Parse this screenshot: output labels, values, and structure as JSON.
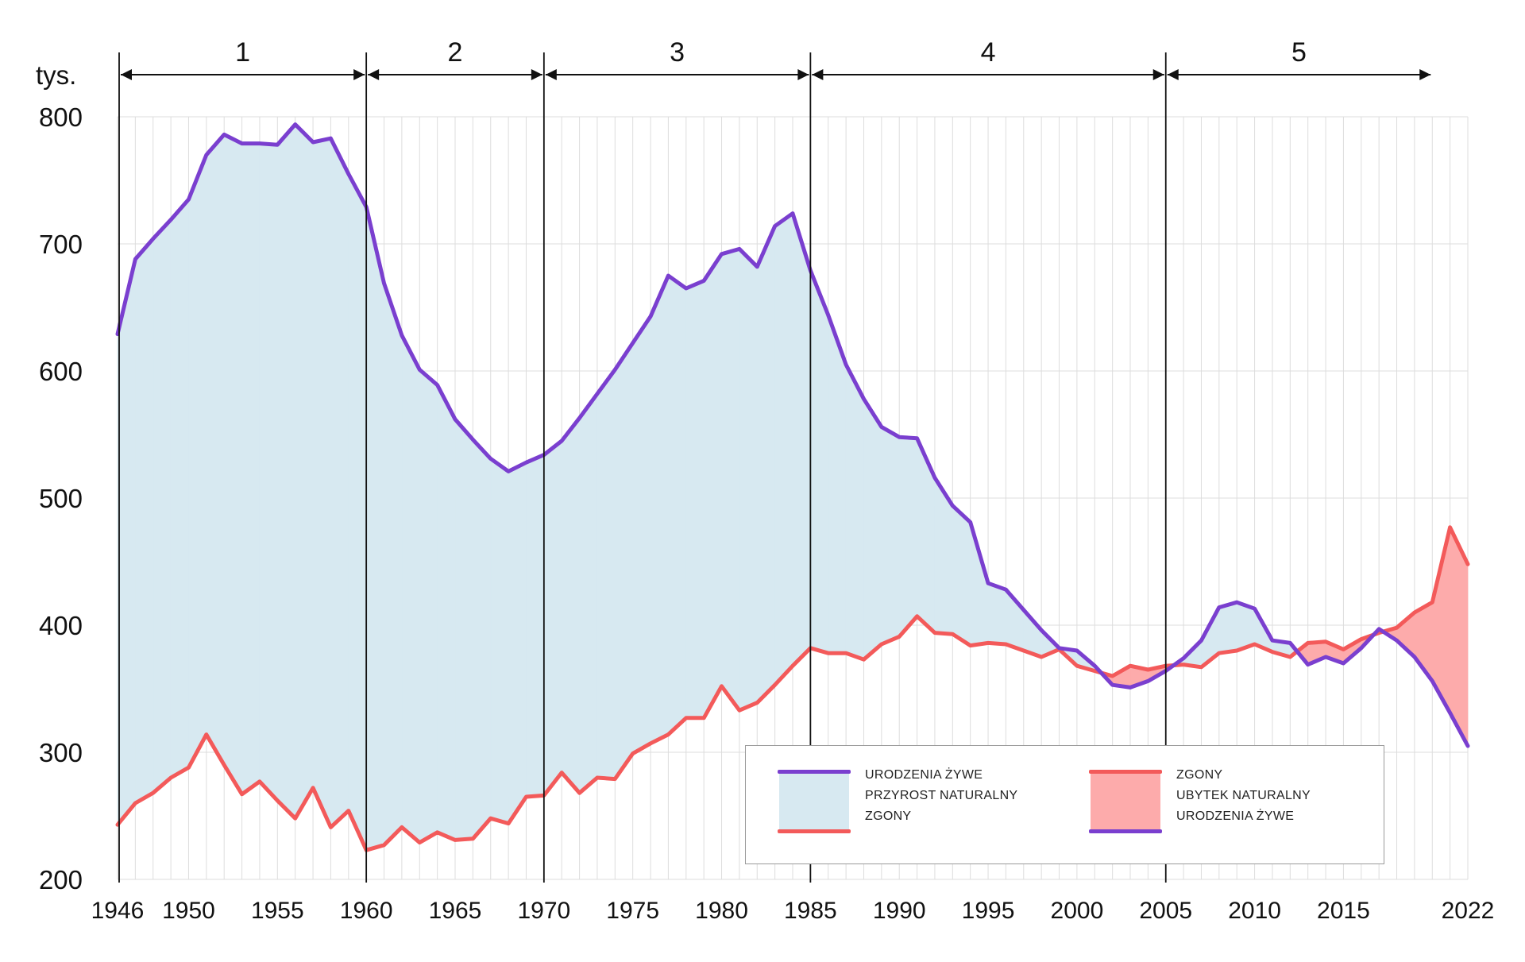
{
  "chart_data": {
    "type": "area",
    "ylabel": "tys.",
    "ylim": [
      200,
      800
    ],
    "yticks": [
      200,
      300,
      400,
      500,
      600,
      700,
      800
    ],
    "xlim": [
      1946,
      2022
    ],
    "xtick_labels": [
      "1946",
      "1950",
      "1955",
      "1960",
      "1965",
      "1970",
      "1975",
      "1980",
      "1985",
      "1990",
      "1995",
      "2000",
      "2005",
      "2010",
      "2015",
      "2022"
    ],
    "xtick_years": [
      1946,
      1950,
      1955,
      1960,
      1965,
      1970,
      1975,
      1980,
      1985,
      1990,
      1995,
      2000,
      2005,
      2010,
      2015,
      2022
    ],
    "grid": true,
    "colors": {
      "births": "#7a3fcf",
      "deaths": "#f35a5a",
      "growth_fill": "#d7e9f1",
      "decline_fill": "#fdabab",
      "grid": "#dddddd",
      "period_line": "#111111"
    },
    "periods": [
      {
        "label": "1",
        "start": 1946,
        "end": 1960
      },
      {
        "label": "2",
        "start": 1960,
        "end": 1970
      },
      {
        "label": "3",
        "start": 1970,
        "end": 1985
      },
      {
        "label": "4",
        "start": 1985,
        "end": 2005
      },
      {
        "label": "5",
        "start": 2005,
        "end": 2020
      }
    ],
    "x": [
      1946,
      1947,
      1948,
      1949,
      1950,
      1951,
      1952,
      1953,
      1954,
      1955,
      1956,
      1957,
      1958,
      1959,
      1960,
      1961,
      1962,
      1963,
      1964,
      1965,
      1966,
      1967,
      1968,
      1969,
      1970,
      1971,
      1972,
      1973,
      1974,
      1975,
      1976,
      1977,
      1978,
      1979,
      1980,
      1981,
      1982,
      1983,
      1984,
      1985,
      1986,
      1987,
      1988,
      1989,
      1990,
      1991,
      1992,
      1993,
      1994,
      1995,
      1996,
      1997,
      1998,
      1999,
      2000,
      2001,
      2002,
      2003,
      2004,
      2005,
      2006,
      2007,
      2008,
      2009,
      2010,
      2011,
      2012,
      2013,
      2014,
      2015,
      2016,
      2017,
      2018,
      2019,
      2020,
      2021,
      2022
    ],
    "series": [
      {
        "name": "URODZENIA ŻYWE",
        "values": [
          629,
          688,
          704,
          719,
          735,
          770,
          786,
          779,
          779,
          778,
          794,
          780,
          783,
          755,
          729,
          669,
          628,
          601,
          589,
          562,
          546,
          531,
          521,
          528,
          534,
          545,
          563,
          582,
          601,
          622,
          643,
          675,
          665,
          671,
          692,
          696,
          682,
          714,
          724,
          679,
          644,
          605,
          578,
          556,
          548,
          547,
          516,
          494,
          481,
          433,
          428,
          412,
          396,
          382,
          380,
          368,
          353,
          351,
          356,
          364,
          374,
          388,
          414,
          418,
          413,
          388,
          386,
          369,
          375,
          370,
          382,
          397,
          388,
          375,
          356,
          331,
          305
        ]
      },
      {
        "name": "ZGONY",
        "values": [
          243,
          260,
          268,
          280,
          288,
          314,
          290,
          267,
          277,
          262,
          248,
          272,
          241,
          254,
          223,
          227,
          241,
          229,
          237,
          231,
          232,
          248,
          244,
          265,
          266,
          284,
          268,
          280,
          279,
          299,
          307,
          314,
          327,
          327,
          352,
          333,
          339,
          353,
          368,
          382,
          378,
          378,
          373,
          385,
          391,
          407,
          394,
          393,
          384,
          386,
          385,
          380,
          375,
          381,
          368,
          364,
          360,
          368,
          365,
          368,
          369,
          367,
          378,
          380,
          385,
          379,
          375,
          386,
          387,
          381,
          389,
          394,
          398,
          410,
          418,
          477,
          448
        ]
      }
    ],
    "legend": {
      "growth": {
        "line1": "URODZENIA ŻYWE",
        "line2": "PRZYROST NATURALNY",
        "line3": "ZGONY"
      },
      "decline": {
        "line1": "ZGONY",
        "line2": "UBYTEK NATURALNY",
        "line3": "URODZENIA ŻYWE"
      }
    }
  }
}
